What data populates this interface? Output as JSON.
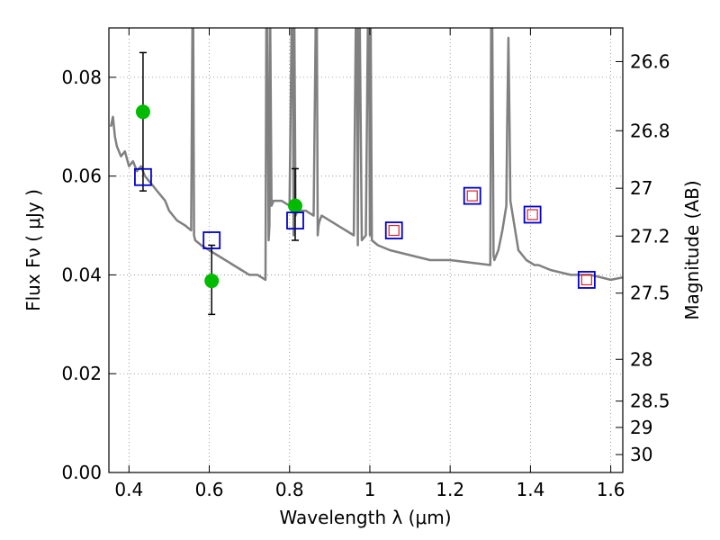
{
  "chart_data": {
    "type": "scatter",
    "title": "",
    "xlabel": "Wavelength  λ (μm)",
    "ylabel": "Flux  Fν  ( μJy )",
    "y2label": "Magnitude (AB)",
    "xlim": [
      0.35,
      1.63
    ],
    "ylim": [
      0.0,
      0.09
    ],
    "grid": true,
    "legend": "none",
    "colors": {
      "model": "#808080",
      "observed": "#00bb00",
      "synthetic_box": "#0000cc",
      "predicted_box": "#dd2222",
      "errorbar": "#000000"
    },
    "x_ticks": [
      {
        "value": 0.4,
        "label": "0.4"
      },
      {
        "value": 0.6,
        "label": "0.6"
      },
      {
        "value": 0.8,
        "label": "0.8"
      },
      {
        "value": 1.0,
        "label": "1"
      },
      {
        "value": 1.2,
        "label": "1.2"
      },
      {
        "value": 1.4,
        "label": "1.4"
      },
      {
        "value": 1.6,
        "label": "1.6"
      }
    ],
    "y_ticks": [
      {
        "value": 0.0,
        "label": "0.00"
      },
      {
        "value": 0.02,
        "label": "0.02"
      },
      {
        "value": 0.04,
        "label": "0.04"
      },
      {
        "value": 0.06,
        "label": "0.06"
      },
      {
        "value": 0.08,
        "label": "0.08"
      }
    ],
    "y2_ticks": [
      {
        "value": 26.6,
        "label": "26.6"
      },
      {
        "value": 26.8,
        "label": "26.8"
      },
      {
        "value": 27.0,
        "label": "27"
      },
      {
        "value": 27.2,
        "label": "27.2"
      },
      {
        "value": 27.5,
        "label": "27.5"
      },
      {
        "value": 28.0,
        "label": "28"
      },
      {
        "value": 28.5,
        "label": "28.5"
      },
      {
        "value": 29.0,
        "label": "29"
      },
      {
        "value": 30.0,
        "label": "30"
      }
    ],
    "series": [
      {
        "kind": "model_sed",
        "x": [
          0.355,
          0.36,
          0.365,
          0.37,
          0.38,
          0.39,
          0.4,
          0.41,
          0.42,
          0.43,
          0.44,
          0.45,
          0.46,
          0.47,
          0.48,
          0.49,
          0.5,
          0.52,
          0.54,
          0.555,
          0.558,
          0.56,
          0.562,
          0.565,
          0.58,
          0.6,
          0.62,
          0.64,
          0.66,
          0.68,
          0.7,
          0.72,
          0.74,
          0.742,
          0.745,
          0.748,
          0.75,
          0.752,
          0.755,
          0.76,
          0.78,
          0.8,
          0.805,
          0.808,
          0.81,
          0.812,
          0.815,
          0.82,
          0.84,
          0.86,
          0.865,
          0.868,
          0.87,
          0.872,
          0.875,
          0.88,
          0.9,
          0.92,
          0.94,
          0.96,
          0.965,
          0.968,
          0.97,
          0.972,
          0.975,
          0.98,
          0.99,
          0.995,
          0.998,
          1.0,
          1.002,
          1.005,
          1.02,
          1.05,
          1.1,
          1.15,
          1.2,
          1.25,
          1.3,
          1.302,
          1.305,
          1.308,
          1.31,
          1.32,
          1.33,
          1.34,
          1.342,
          1.345,
          1.348,
          1.35,
          1.37,
          1.39,
          1.41,
          1.42,
          1.45,
          1.5,
          1.55,
          1.6,
          1.63
        ],
        "y": [
          0.07,
          0.072,
          0.068,
          0.066,
          0.064,
          0.065,
          0.062,
          0.063,
          0.061,
          0.062,
          0.06,
          0.059,
          0.058,
          0.057,
          0.056,
          0.055,
          0.053,
          0.051,
          0.05,
          0.049,
          0.09,
          0.09,
          0.048,
          0.047,
          0.046,
          0.045,
          0.044,
          0.043,
          0.042,
          0.041,
          0.04,
          0.04,
          0.039,
          0.09,
          0.09,
          0.047,
          0.05,
          0.09,
          0.054,
          0.055,
          0.055,
          0.054,
          0.09,
          0.09,
          0.048,
          0.09,
          0.052,
          0.053,
          0.053,
          0.052,
          0.09,
          0.09,
          0.048,
          0.05,
          0.051,
          0.052,
          0.051,
          0.05,
          0.049,
          0.048,
          0.09,
          0.09,
          0.046,
          0.09,
          0.09,
          0.047,
          0.048,
          0.09,
          0.09,
          0.048,
          0.09,
          0.047,
          0.046,
          0.045,
          0.044,
          0.043,
          0.043,
          0.0425,
          0.042,
          0.09,
          0.09,
          0.044,
          0.043,
          0.045,
          0.049,
          0.054,
          0.07,
          0.088,
          0.07,
          0.055,
          0.045,
          0.043,
          0.042,
          0.042,
          0.041,
          0.04,
          0.04,
          0.039,
          0.0395
        ]
      },
      {
        "kind": "observed_photometry",
        "x": [
          0.435,
          0.606,
          0.814
        ],
        "y": [
          0.073,
          0.0388,
          0.054
        ],
        "yerr_low": [
          0.057,
          0.032,
          0.047
        ],
        "yerr_high": [
          0.085,
          0.046,
          0.0615
        ]
      },
      {
        "kind": "model_photometry",
        "x": [
          0.435,
          0.606,
          0.814,
          1.06,
          1.255,
          1.405,
          1.54
        ],
        "y": [
          0.0598,
          0.047,
          0.051,
          0.049,
          0.056,
          0.0522,
          0.039
        ]
      },
      {
        "kind": "predicted_photometry",
        "x": [
          1.06,
          1.255,
          1.405,
          1.54
        ],
        "y": [
          0.049,
          0.056,
          0.0522,
          0.039
        ]
      }
    ]
  }
}
